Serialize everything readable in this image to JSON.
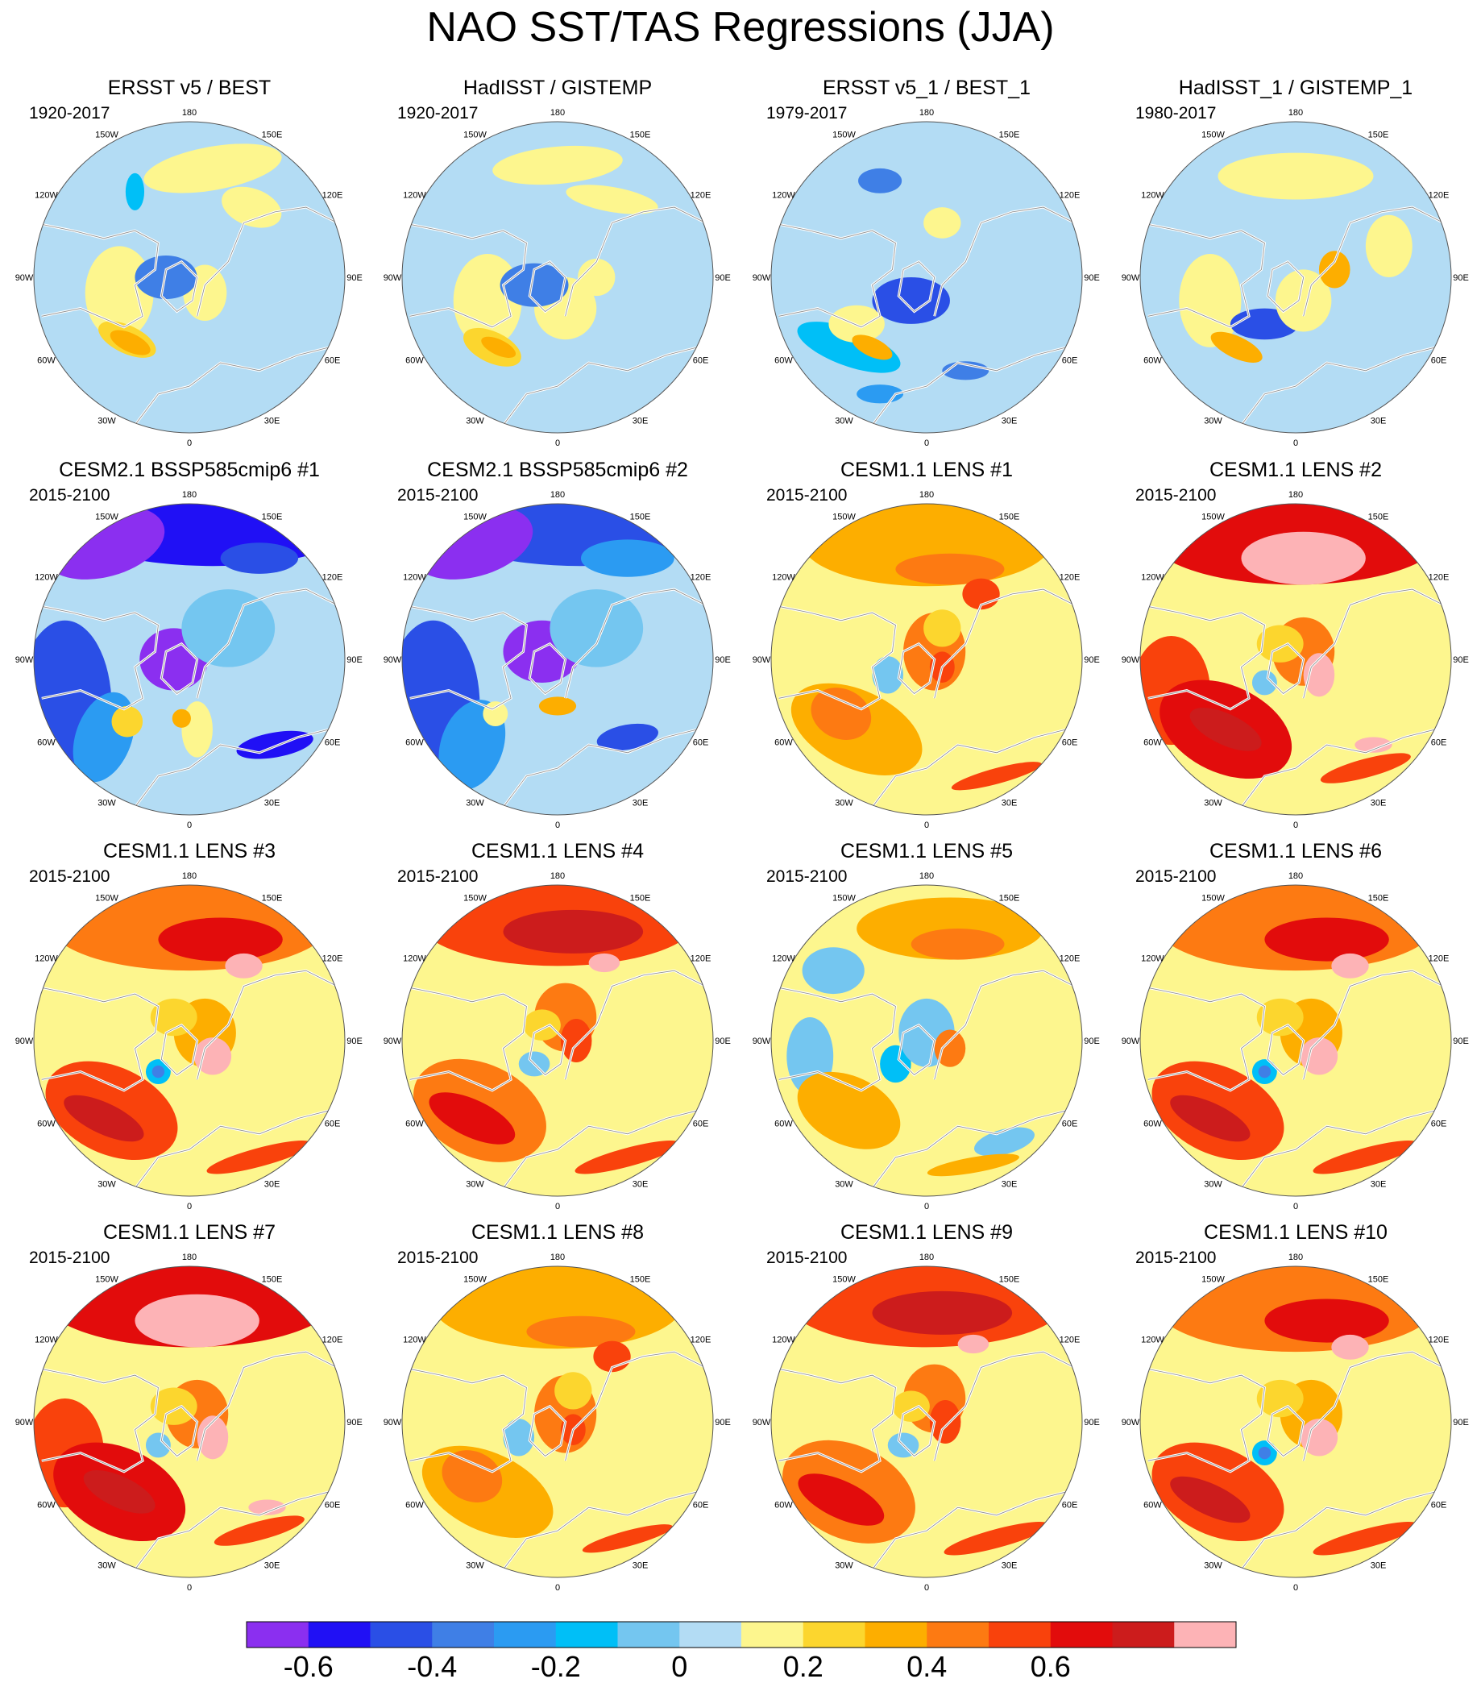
{
  "title": "NAO SST/TAS Regressions (JJA)",
  "lon_labels": [
    "180",
    "150E",
    "120E",
    "90E",
    "60E",
    "30E",
    "0",
    "30W",
    "60W",
    "90W",
    "120W",
    "150W"
  ],
  "panels": [
    {
      "title": "ERSST v5 / BEST",
      "period": "1920-2017",
      "scheme": "obs_a"
    },
    {
      "title": "HadISST / GISTEMP",
      "period": "1920-2017",
      "scheme": "obs_b"
    },
    {
      "title": "ERSST v5_1 / BEST_1",
      "period": "1979-2017",
      "scheme": "obs_c"
    },
    {
      "title": "HadISST_1 / GISTEMP_1",
      "period": "1980-2017",
      "scheme": "obs_d"
    },
    {
      "title": "CESM2.1 BSSP585cmip6 #1",
      "period": "2015-2100",
      "scheme": "cool_a"
    },
    {
      "title": "CESM2.1 BSSP585cmip6 #2",
      "period": "2015-2100",
      "scheme": "cool_b"
    },
    {
      "title": "CESM1.1 LENS #1",
      "period": "2015-2100",
      "scheme": "warm_mod"
    },
    {
      "title": "CESM1.1 LENS #2",
      "period": "2015-2100",
      "scheme": "warm_hot"
    },
    {
      "title": "CESM1.1 LENS #3",
      "period": "2015-2100",
      "scheme": "warm_a"
    },
    {
      "title": "CESM1.1 LENS #4",
      "period": "2015-2100",
      "scheme": "warm_b"
    },
    {
      "title": "CESM1.1 LENS #5",
      "period": "2015-2100",
      "scheme": "warm_weak"
    },
    {
      "title": "CESM1.1 LENS #6",
      "period": "2015-2100",
      "scheme": "warm_a"
    },
    {
      "title": "CESM1.1 LENS #7",
      "period": "2015-2100",
      "scheme": "warm_hot"
    },
    {
      "title": "CESM1.1 LENS #8",
      "period": "2015-2100",
      "scheme": "warm_mod"
    },
    {
      "title": "CESM1.1 LENS #9",
      "period": "2015-2100",
      "scheme": "warm_b"
    },
    {
      "title": "CESM1.1 LENS #10",
      "period": "2015-2100",
      "scheme": "warm_a"
    }
  ],
  "colorbar": {
    "colors": [
      "#8b2ff0",
      "#2010f5",
      "#2a4fe6",
      "#3f7fe6",
      "#2b9bf2",
      "#00bff7",
      "#74c6f0",
      "#b3dcf4",
      "#fdf68e",
      "#fcd62e",
      "#fdae00",
      "#fd7a12",
      "#f9420c",
      "#e20c0c",
      "#cc1c1c",
      "#fdb3b6"
    ],
    "tick_values": [
      -0.6,
      -0.4,
      -0.2,
      0,
      0.2,
      0.4,
      0.6
    ],
    "tick_labels": [
      "-0.6",
      "-0.4",
      "-0.2",
      "0",
      "0.2",
      "0.4",
      "0.6"
    ]
  },
  "colors": {
    "land_outline": "#ffffff",
    "coast": "#8a8a8a",
    "map_border": "#555555"
  }
}
